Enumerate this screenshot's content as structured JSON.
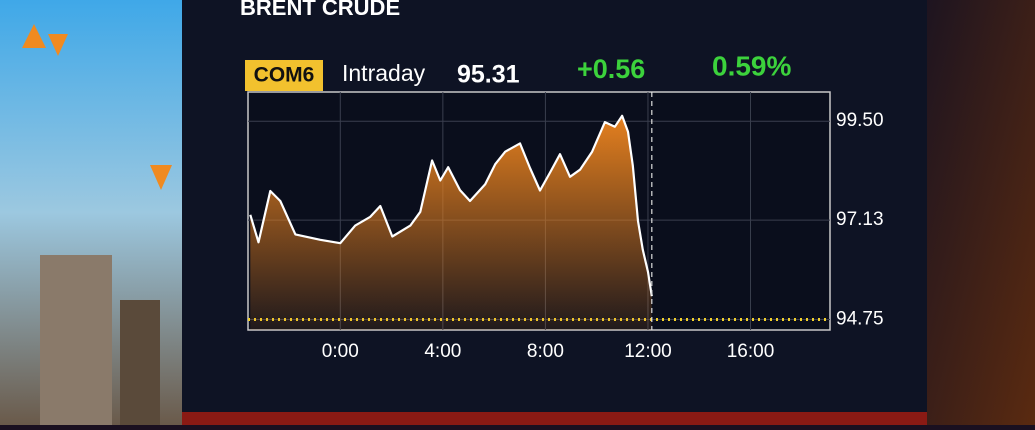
{
  "chart_data": {
    "type": "area",
    "title": "BRENT CRUDE",
    "ticker": "COM6",
    "period": "Intraday",
    "last": 95.31,
    "change": "+0.56",
    "change_pct": "0.59%",
    "x": [
      -3.51,
      -3.19,
      -2.73,
      -2.34,
      -1.75,
      -0.78,
      0,
      0.58,
      1.17,
      1.56,
      2.03,
      2.73,
      3.12,
      3.58,
      3.9,
      4.21,
      4.67,
      5.06,
      5.65,
      6.04,
      6.43,
      7.01,
      7.4,
      7.79,
      8.18,
      8.57,
      8.96,
      9.35,
      9.82,
      10.32,
      10.71,
      10.99,
      11.22,
      11.41,
      11.61,
      11.8,
      12.0,
      12.15
    ],
    "values": [
      97.26,
      96.6,
      97.83,
      97.59,
      96.79,
      96.66,
      96.58,
      97.0,
      97.21,
      97.47,
      96.74,
      97.0,
      97.33,
      98.56,
      98.08,
      98.4,
      97.85,
      97.59,
      97.99,
      98.47,
      98.77,
      98.97,
      98.38,
      97.84,
      98.27,
      98.71,
      98.17,
      98.34,
      98.77,
      99.48,
      99.37,
      99.63,
      99.25,
      98.44,
      97.11,
      96.42,
      95.89,
      95.31
    ],
    "color": "#ffffff",
    "fill_color": "#e5801f",
    "reference_y": 94.75,
    "reference_color": "#f2d02b",
    "now_x": 12.15,
    "xlim": [
      -3.6,
      19.1
    ],
    "xticks": [
      {
        "value": 0,
        "label": "0:00"
      },
      {
        "value": 4,
        "label": "4:00"
      },
      {
        "value": 8,
        "label": "8:00"
      },
      {
        "value": 12,
        "label": "12:00"
      },
      {
        "value": 16,
        "label": "16:00"
      }
    ],
    "ylim": [
      94.5,
      100.2
    ],
    "yticks": [
      94.75,
      97.13,
      {
        "value": 99.5,
        "label": "99.50"
      }
    ],
    "grid": true
  }
}
